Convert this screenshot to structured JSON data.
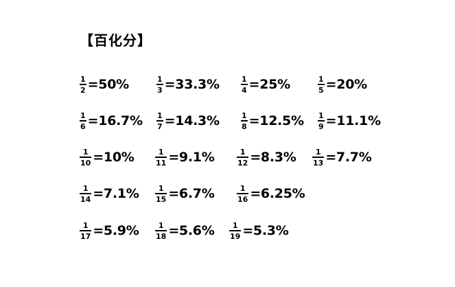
{
  "title": "【百化分】",
  "items": [
    {
      "num": "1",
      "den": "2",
      "value": "=50%"
    },
    {
      "num": "1",
      "den": "3",
      "value": "=33.3%"
    },
    {
      "num": "1",
      "den": "4",
      "value": "=25%"
    },
    {
      "num": "1",
      "den": "5",
      "value": "=20%"
    },
    {
      "num": "1",
      "den": "6",
      "value": "=16.7%"
    },
    {
      "num": "1",
      "den": "7",
      "value": "=14.3%"
    },
    {
      "num": "1",
      "den": "8",
      "value": "=12.5%"
    },
    {
      "num": "1",
      "den": "9",
      "value": "=11.1%"
    },
    {
      "num": "1",
      "den": "10",
      "value": "=10%"
    },
    {
      "num": "1",
      "den": "11",
      "value": "=9.1%"
    },
    {
      "num": "1",
      "den": "12",
      "value": "=8.3%"
    },
    {
      "num": "1",
      "den": "13",
      "value": "=7.7%"
    },
    {
      "num": "1",
      "den": "14",
      "value": "=7.1%"
    },
    {
      "num": "1",
      "den": "15",
      "value": "=6.7%"
    },
    {
      "num": "1",
      "den": "16",
      "value": "=6.25%"
    },
    {
      "num": "1",
      "den": "17",
      "value": "=5.9%"
    },
    {
      "num": "1",
      "den": "18",
      "value": "=5.6%"
    },
    {
      "num": "1",
      "den": "19",
      "value": "=5.3%"
    }
  ]
}
